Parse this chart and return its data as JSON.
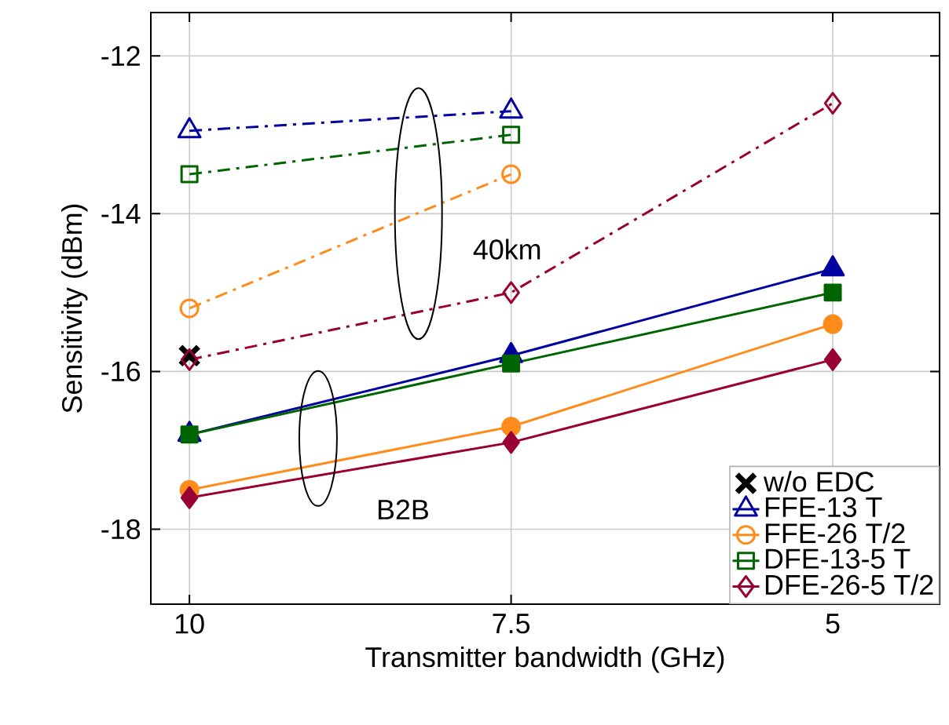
{
  "chart_data": {
    "type": "line",
    "xlabel": "Transmitter bandwidth (GHz)",
    "ylabel": "Sensitivity (dBm)",
    "x": [
      10,
      7.5,
      5
    ],
    "xlim": [
      10.3,
      4.17
    ],
    "xticks": [
      10,
      7.5,
      5
    ],
    "ylim": [
      -18.95,
      -11.45
    ],
    "yticks": [
      -18,
      -16,
      -14,
      -12
    ],
    "grid": true,
    "legend": "bottom right",
    "series": [
      {
        "name": "w/o EDC",
        "type": "scatter",
        "color": "#000000",
        "marker": "cross",
        "values": [
          -15.8,
          null,
          null
        ]
      },
      {
        "name": "FFE-13 T",
        "color": "#0000a0",
        "marker": "triangle",
        "line_style": "dashed",
        "values": [
          -12.95,
          -12.7,
          null
        ]
      },
      {
        "name": "FFE-26 T/2",
        "color": "#ff8c1a",
        "marker": "circle",
        "line_style": "dashed",
        "values": [
          -15.2,
          -13.5,
          null
        ]
      },
      {
        "name": "DFE-13-5 T",
        "color": "#006400",
        "marker": "square",
        "line_style": "dashed",
        "values": [
          -13.5,
          -13.0,
          null
        ]
      },
      {
        "name": "DFE-26-5 T/2",
        "color": "#990033",
        "marker": "diamond",
        "line_style": "dashed",
        "values": [
          -15.85,
          -15.0,
          -12.6
        ]
      },
      {
        "color": "#0000a0",
        "marker": "triangle",
        "line_style": "solid",
        "values": [
          -16.8,
          -15.8,
          -14.7
        ]
      },
      {
        "color": "#ff8c1a",
        "marker": "circle",
        "line_style": "solid",
        "values": [
          -17.5,
          -16.7,
          -15.4
        ]
      },
      {
        "color": "#006400",
        "marker": "square",
        "line_style": "solid",
        "values": [
          -16.8,
          -15.9,
          -15.0
        ]
      },
      {
        "color": "#990033",
        "marker": "diamond",
        "line_style": "solid",
        "values": [
          -17.6,
          -16.9,
          -15.85
        ]
      }
    ],
    "annotations": [
      "40km",
      "B2B"
    ]
  }
}
